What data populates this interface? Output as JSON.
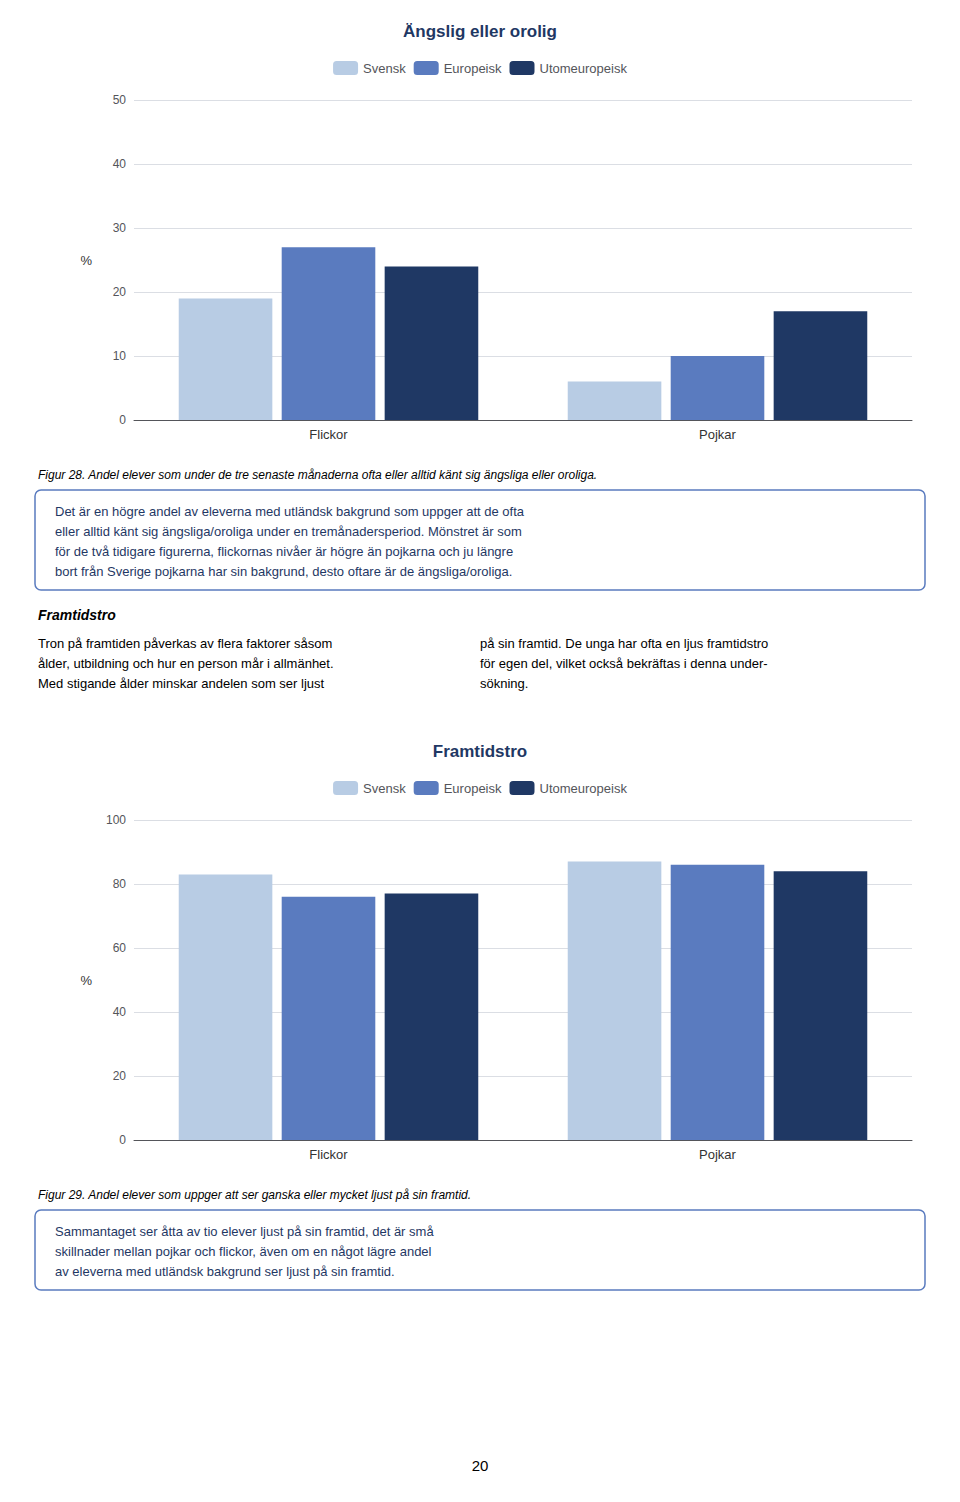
{
  "chart_data": [
    {
      "type": "bar",
      "title": "Ängslig eller orolig",
      "categories": [
        "Flickor",
        "Pojkar"
      ],
      "series": [
        {
          "name": "Svensk",
          "color": "#b8cce4",
          "values": [
            19,
            6
          ]
        },
        {
          "name": "Europeisk",
          "color": "#5a7bbf",
          "values": [
            27,
            10
          ]
        },
        {
          "name": "Utomeuropeisk",
          "color": "#1f3864",
          "values": [
            24,
            17
          ]
        }
      ],
      "ylabel": "%",
      "ylim": [
        0,
        50
      ],
      "yticks": [
        0,
        10,
        20,
        30,
        40,
        50
      ],
      "grid": true,
      "legend": "top",
      "annotations": [
        "Figur 28. Andel elever som under de tre senaste månaderna ofta eller alltid känt sig ängsliga eller oroliga.",
        "Det är en högre andel av eleverna med utländsk bakgrund som uppger att de ofta\neller alltid känt sig ängsliga/oroliga under en tremånadersperiod. Mönstret är som\nför de två tidigare figurerna, flickornas nivåer är högre än pojkarna och ju längre\nbort från Sverige pojkarna har sin bakgrund, desto oftare är de ängsliga/oroliga.",
        "Framtidstro",
        "Tron på framtiden påverkas av flera faktorer såsom\nålder, utbildning och hur en person mår i allmänhet.\nMed stigande ålder minskar andelen som ser ljust",
        "på sin framtid. De unga har ofta en ljus framtidstro\nför egen del, vilket också bekräftas i denna under-\nsökning."
      ]
    },
    {
      "type": "bar",
      "title": "Framtidstro",
      "categories": [
        "Flickor",
        "Pojkar"
      ],
      "series": [
        {
          "name": "Svensk",
          "color": "#b8cce4",
          "values": [
            83,
            87
          ]
        },
        {
          "name": "Europeisk",
          "color": "#5a7bbf",
          "values": [
            76,
            86
          ]
        },
        {
          "name": "Utomeuropeisk",
          "color": "#1f3864",
          "values": [
            77,
            84
          ]
        }
      ],
      "ylabel": "%",
      "ylim": [
        0,
        100
      ],
      "yticks": [
        0,
        20,
        40,
        60,
        80,
        100
      ],
      "grid": true,
      "legend": "top",
      "annotations": [
        "Figur 29. Andel elever som uppger att ser ganska eller mycket ljust på sin framtid.",
        "Sammantaget ser åtta av tio elever ljust på sin framtid, det är små\nskillnader mellan pojkar och flickor, även om en något lägre andel\nav eleverna med utländsk bakgrund ser ljust på sin framtid.",
        "20"
      ]
    }
  ]
}
